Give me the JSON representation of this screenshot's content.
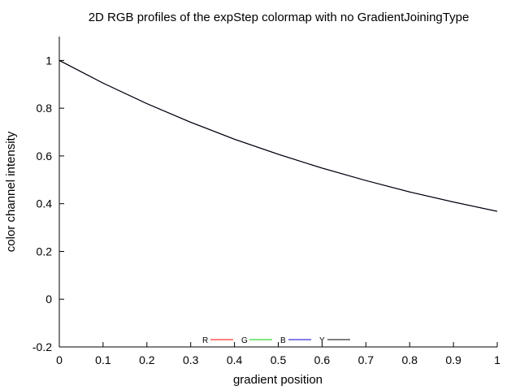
{
  "chart_data": {
    "type": "line",
    "title": "2D RGB profiles of the expStep colormap with no GradientJoiningType",
    "xlabel": "gradient position",
    "ylabel": "color channel intensity",
    "xlim": [
      0,
      1
    ],
    "ylim": [
      -0.2,
      1.1
    ],
    "x_ticks": [
      "0",
      "0.1",
      "0.2",
      "0.3",
      "0.4",
      "0.5",
      "0.6",
      "0.7",
      "0.8",
      "0.9",
      "1"
    ],
    "y_ticks": [
      "-0.2",
      "0",
      "0.2",
      "0.4",
      "0.6",
      "0.8",
      "1"
    ],
    "grid": false,
    "legend_position": "bottom-center",
    "x": [
      0,
      0.1,
      0.2,
      0.3,
      0.4,
      0.5,
      0.6,
      0.7,
      0.8,
      0.9,
      1
    ],
    "series": [
      {
        "name": "R",
        "color": "#ff0000",
        "values": [
          1,
          0.905,
          0.819,
          0.741,
          0.67,
          0.607,
          0.549,
          0.497,
          0.449,
          0.407,
          0.368
        ]
      },
      {
        "name": "G",
        "color": "#00cc00",
        "values": [
          1,
          0.905,
          0.819,
          0.741,
          0.67,
          0.607,
          0.549,
          0.497,
          0.449,
          0.407,
          0.368
        ]
      },
      {
        "name": "B",
        "color": "#0000cc",
        "values": [
          1,
          0.905,
          0.819,
          0.741,
          0.67,
          0.607,
          0.549,
          0.497,
          0.449,
          0.407,
          0.368
        ]
      },
      {
        "name": "Y",
        "color": "#000000",
        "values": [
          1,
          0.905,
          0.819,
          0.741,
          0.67,
          0.607,
          0.549,
          0.497,
          0.449,
          0.407,
          0.368
        ]
      }
    ]
  }
}
